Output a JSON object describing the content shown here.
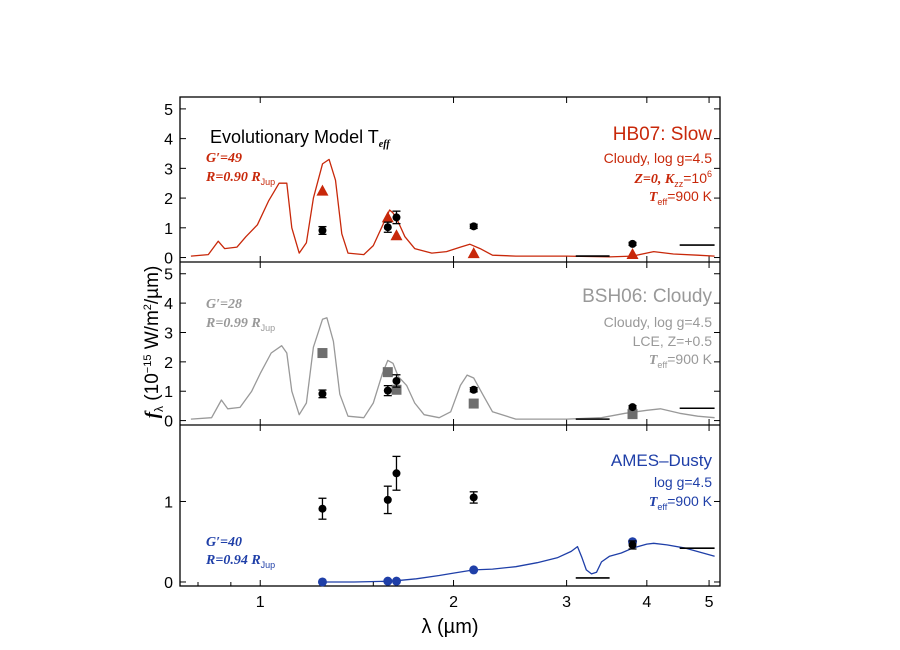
{
  "axes": {
    "xlabel": "λ (µm)",
    "ylabel_symbol": "f",
    "ylabel_sub": "λ",
    "ylabel_rest": " (10",
    "ylabel_exp": "−15",
    "ylabel_unit": " W/m",
    "ylabel_sq": "2",
    "ylabel_end": "/µm)",
    "x_range": [
      0.75,
      5.2
    ],
    "x_scale": "log",
    "x_ticks": [
      1,
      2,
      3,
      4,
      5
    ],
    "x_tick_labels": [
      "1",
      "2",
      "3",
      "4",
      "5"
    ]
  },
  "colors": {
    "hb07": "#c8280a",
    "bsh06": "#999999",
    "bsh06_marker": "#6e6e6e",
    "ames": "#1f3fa8",
    "data": "#000000",
    "axis": "#000000"
  },
  "observed": {
    "points": [
      {
        "x": 1.25,
        "y": 0.91,
        "err": 0.13
      },
      {
        "x": 1.58,
        "y": 1.02,
        "err": 0.17
      },
      {
        "x": 1.63,
        "y": 1.35,
        "err": 0.21
      },
      {
        "x": 2.15,
        "y": 1.05,
        "err": 0.07
      },
      {
        "x": 3.8,
        "y": 0.46,
        "err": 0.05
      }
    ],
    "upper_limits": [
      {
        "x0": 3.1,
        "x1": 3.5,
        "y": 0.05
      },
      {
        "x0": 4.5,
        "x1": 5.1,
        "y": 0.42
      }
    ]
  },
  "panels": [
    {
      "id": "hb07",
      "ylim": [
        -0.15,
        5.4
      ],
      "yticks": [
        0,
        1,
        2,
        3,
        4,
        5
      ],
      "ytick_labels": [
        "0",
        "1",
        "2",
        "3",
        "4",
        "5"
      ],
      "header": "Evolutionary Model T",
      "header_sub": "eff",
      "model_title": "HB07: Slow",
      "g_label": "G′=49",
      "r_label": "R=0.90 R",
      "r_sub": "Jup",
      "param1": "Cloudy, log g=4.5",
      "param2": "Z=0, K",
      "param2_sub": "zz",
      "param2_eq": "=10",
      "param2_exp": "6",
      "teff": "T",
      "teff_sub": "eff",
      "teff_val": "=900 K",
      "marker": "triangle",
      "model_points": [
        [
          1.25,
          2.25
        ],
        [
          1.58,
          1.35
        ],
        [
          1.63,
          0.75
        ],
        [
          2.15,
          0.15
        ],
        [
          3.8,
          0.12
        ]
      ],
      "spectrum": [
        [
          0.78,
          0.05
        ],
        [
          0.83,
          0.1
        ],
        [
          0.86,
          0.55
        ],
        [
          0.88,
          0.3
        ],
        [
          0.92,
          0.35
        ],
        [
          0.95,
          0.7
        ],
        [
          0.99,
          1.1
        ],
        [
          1.03,
          1.9
        ],
        [
          1.07,
          2.5
        ],
        [
          1.1,
          2.5
        ],
        [
          1.12,
          1.0
        ],
        [
          1.15,
          0.15
        ],
        [
          1.18,
          0.5
        ],
        [
          1.21,
          2.0
        ],
        [
          1.25,
          3.15
        ],
        [
          1.28,
          3.3
        ],
        [
          1.31,
          2.6
        ],
        [
          1.34,
          0.8
        ],
        [
          1.37,
          0.15
        ],
        [
          1.45,
          0.1
        ],
        [
          1.5,
          0.4
        ],
        [
          1.56,
          1.2
        ],
        [
          1.59,
          1.6
        ],
        [
          1.61,
          1.5
        ],
        [
          1.64,
          1.2
        ],
        [
          1.68,
          0.7
        ],
        [
          1.74,
          0.3
        ],
        [
          1.85,
          0.15
        ],
        [
          1.95,
          0.2
        ],
        [
          2.05,
          0.35
        ],
        [
          2.12,
          0.45
        ],
        [
          2.2,
          0.3
        ],
        [
          2.3,
          0.08
        ],
        [
          2.5,
          0.05
        ],
        [
          3.0,
          0.05
        ],
        [
          3.5,
          0.02
        ],
        [
          3.8,
          0.05
        ],
        [
          4.1,
          0.2
        ],
        [
          4.4,
          0.12
        ],
        [
          4.8,
          0.08
        ],
        [
          5.1,
          0.05
        ]
      ]
    },
    {
      "id": "bsh06",
      "ylim": [
        -0.15,
        5.4
      ],
      "yticks": [
        0,
        1,
        2,
        3,
        4,
        5
      ],
      "ytick_labels": [
        "0",
        "1",
        "2",
        "3",
        "4",
        "5"
      ],
      "model_title": "BSH06: Cloudy",
      "g_label": "G′=28",
      "r_label": "R=0.99 R",
      "r_sub": "Jup",
      "param1": "Cloudy, log g=4.5",
      "param2": "LCE, Z=+0.5",
      "teff": "T",
      "teff_sub": "eff",
      "teff_val": "=900 K",
      "marker": "square",
      "model_points": [
        [
          1.25,
          2.3
        ],
        [
          1.58,
          1.65
        ],
        [
          1.63,
          1.05
        ],
        [
          2.15,
          0.58
        ],
        [
          3.8,
          0.22
        ]
      ],
      "spectrum": [
        [
          0.78,
          0.05
        ],
        [
          0.84,
          0.1
        ],
        [
          0.87,
          0.7
        ],
        [
          0.89,
          0.4
        ],
        [
          0.93,
          0.45
        ],
        [
          0.97,
          1.0
        ],
        [
          1.0,
          1.6
        ],
        [
          1.04,
          2.3
        ],
        [
          1.08,
          2.55
        ],
        [
          1.1,
          2.3
        ],
        [
          1.12,
          1.0
        ],
        [
          1.15,
          0.2
        ],
        [
          1.18,
          0.6
        ],
        [
          1.21,
          2.5
        ],
        [
          1.25,
          3.45
        ],
        [
          1.27,
          3.5
        ],
        [
          1.3,
          2.7
        ],
        [
          1.33,
          0.9
        ],
        [
          1.37,
          0.15
        ],
        [
          1.45,
          0.1
        ],
        [
          1.5,
          0.6
        ],
        [
          1.55,
          1.6
        ],
        [
          1.58,
          2.05
        ],
        [
          1.61,
          1.95
        ],
        [
          1.64,
          1.5
        ],
        [
          1.69,
          1.2
        ],
        [
          1.74,
          0.6
        ],
        [
          1.8,
          0.2
        ],
        [
          1.9,
          0.1
        ],
        [
          1.98,
          0.3
        ],
        [
          2.05,
          1.2
        ],
        [
          2.1,
          1.55
        ],
        [
          2.15,
          1.45
        ],
        [
          2.22,
          0.9
        ],
        [
          2.3,
          0.3
        ],
        [
          2.5,
          0.05
        ],
        [
          3.0,
          0.05
        ],
        [
          3.4,
          0.1
        ],
        [
          3.7,
          0.25
        ],
        [
          4.0,
          0.35
        ],
        [
          4.2,
          0.4
        ],
        [
          4.5,
          0.25
        ],
        [
          4.8,
          0.15
        ],
        [
          5.1,
          0.1
        ]
      ]
    },
    {
      "id": "ames",
      "ylim": [
        -0.05,
        1.95
      ],
      "yticks": [
        0,
        1
      ],
      "ytick_labels": [
        "0",
        "1"
      ],
      "model_title": "AMES–Dusty",
      "g_label": "G′=40",
      "r_label": "R=0.94 R",
      "r_sub": "Jup",
      "param1": "log g=4.5",
      "teff": "T",
      "teff_sub": "eff",
      "teff_val": "=900 K",
      "marker": "circle",
      "model_points": [
        [
          1.25,
          0.0
        ],
        [
          1.58,
          0.01
        ],
        [
          1.63,
          0.01
        ],
        [
          2.15,
          0.15
        ],
        [
          3.8,
          0.5
        ]
      ],
      "spectrum": [
        [
          1.25,
          0.0
        ],
        [
          1.4,
          0.0
        ],
        [
          1.6,
          0.01
        ],
        [
          1.75,
          0.04
        ],
        [
          1.9,
          0.08
        ],
        [
          2.0,
          0.11
        ],
        [
          2.15,
          0.15
        ],
        [
          2.3,
          0.16
        ],
        [
          2.5,
          0.19
        ],
        [
          2.7,
          0.24
        ],
        [
          2.9,
          0.3
        ],
        [
          3.05,
          0.38
        ],
        [
          3.12,
          0.44
        ],
        [
          3.17,
          0.3
        ],
        [
          3.22,
          0.15
        ],
        [
          3.28,
          0.1
        ],
        [
          3.34,
          0.12
        ],
        [
          3.4,
          0.25
        ],
        [
          3.5,
          0.32
        ],
        [
          3.65,
          0.36
        ],
        [
          3.8,
          0.42
        ],
        [
          4.0,
          0.47
        ],
        [
          4.1,
          0.48
        ],
        [
          4.3,
          0.46
        ],
        [
          4.6,
          0.42
        ],
        [
          5.1,
          0.32
        ]
      ]
    }
  ]
}
